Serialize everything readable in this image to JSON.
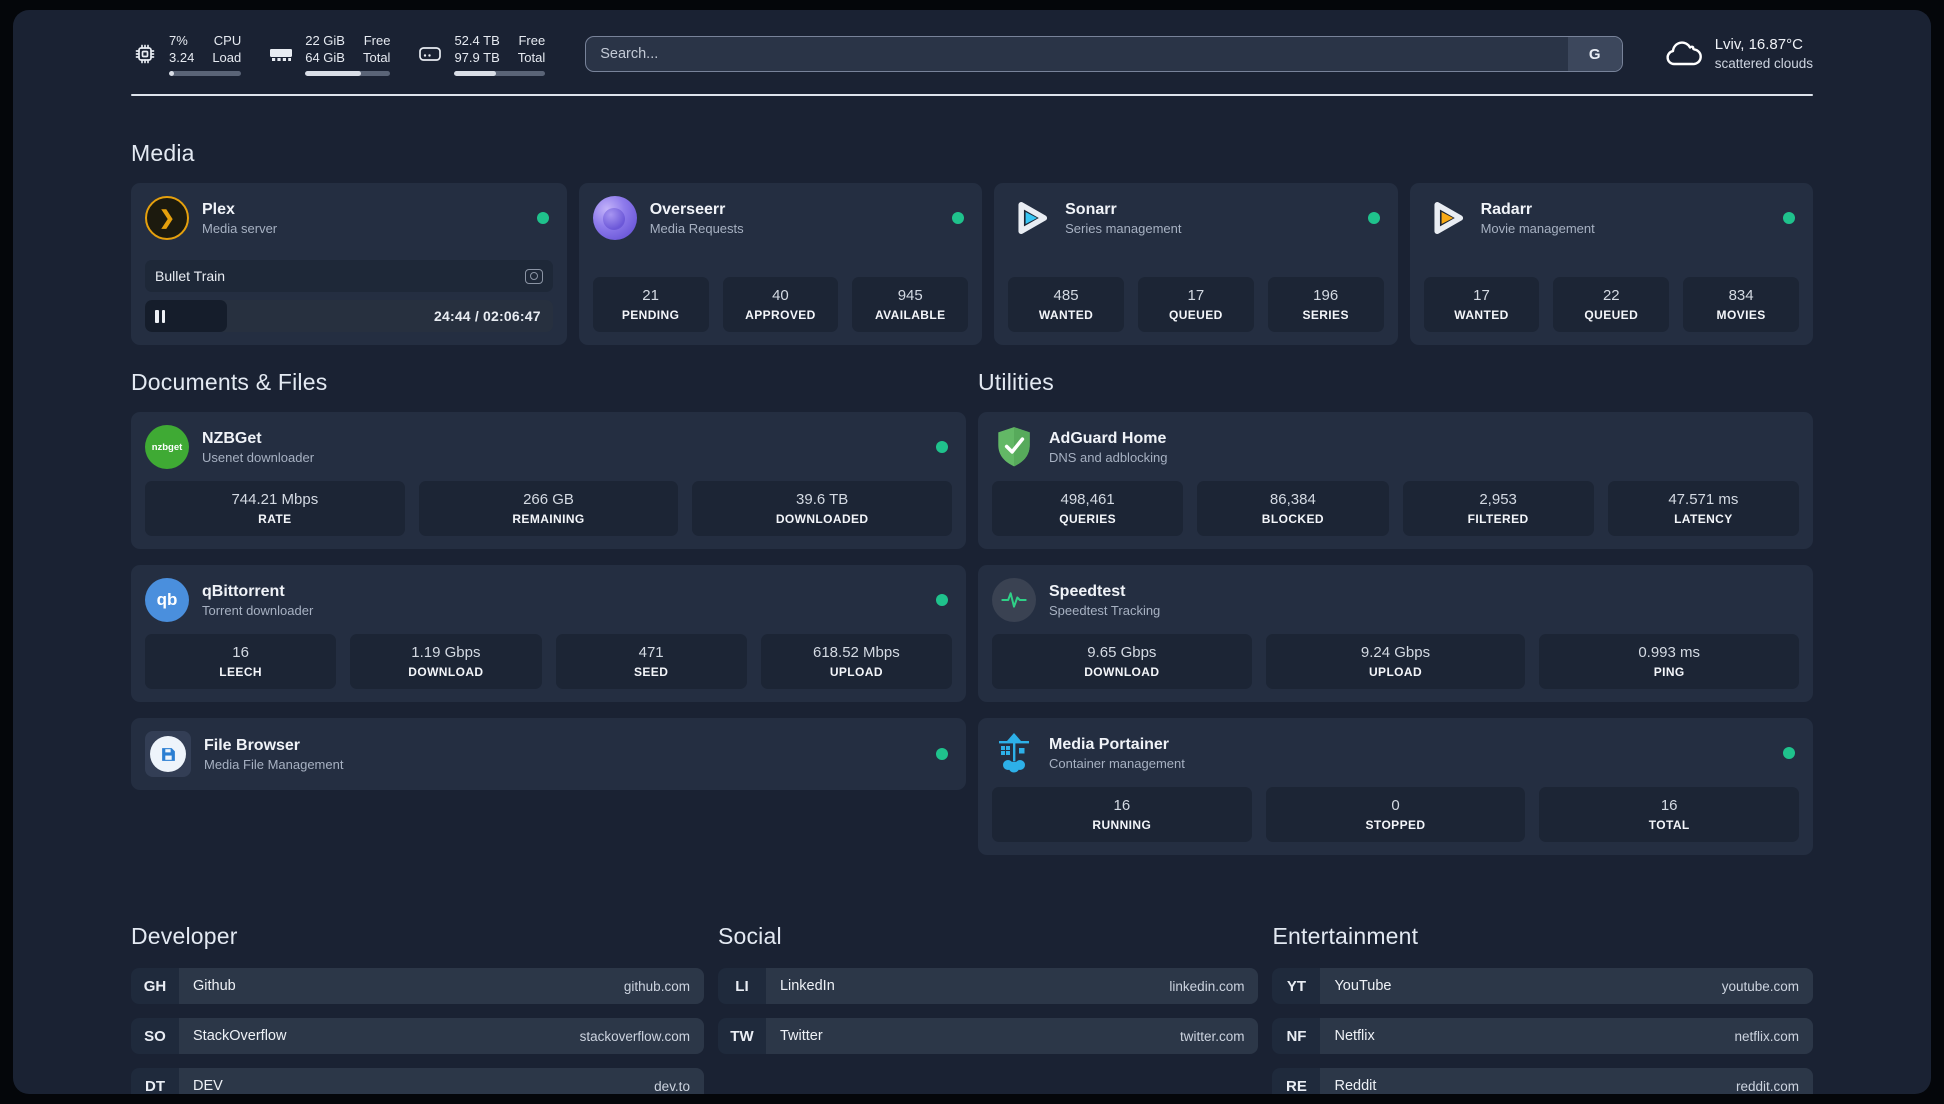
{
  "header": {
    "metrics": [
      {
        "icon": "cpu-chip-icon",
        "values": [
          "7%",
          "3.24"
        ],
        "labels": [
          "CPU",
          "Load"
        ],
        "progress_pct": 7
      },
      {
        "icon": "ram-icon",
        "values": [
          "22 GiB",
          "64 GiB"
        ],
        "labels": [
          "Free",
          "Total"
        ],
        "progress_pct": 66
      },
      {
        "icon": "disk-icon",
        "values": [
          "52.4 TB",
          "97.9 TB"
        ],
        "labels": [
          "Free",
          "Total"
        ],
        "progress_pct": 46
      }
    ],
    "search": {
      "placeholder": "Search...",
      "button_label": "G"
    },
    "weather": {
      "location_temperature": "Lviv, 16.87°C",
      "condition": "scattered clouds"
    }
  },
  "sections": {
    "media": {
      "title": "Media"
    },
    "documents": {
      "title": "Documents & Files"
    },
    "utilities": {
      "title": "Utilities"
    },
    "developer": {
      "title": "Developer"
    },
    "social": {
      "title": "Social"
    },
    "entertainment": {
      "title": "Entertainment"
    }
  },
  "apps": {
    "plex": {
      "title": "Plex",
      "subtitle": "Media server",
      "online": true,
      "now_playing": {
        "title": "Bullet Train",
        "time": "24:44 / 02:06:47",
        "elapsed_pct": 20
      }
    },
    "overseerr": {
      "title": "Overseerr",
      "subtitle": "Media Requests",
      "online": true,
      "stats": [
        {
          "value": "21",
          "label": "PENDING"
        },
        {
          "value": "40",
          "label": "APPROVED"
        },
        {
          "value": "945",
          "label": "AVAILABLE"
        }
      ]
    },
    "sonarr": {
      "title": "Sonarr",
      "subtitle": "Series management",
      "online": true,
      "stats": [
        {
          "value": "485",
          "label": "WANTED"
        },
        {
          "value": "17",
          "label": "QUEUED"
        },
        {
          "value": "196",
          "label": "SERIES"
        }
      ]
    },
    "radarr": {
      "title": "Radarr",
      "subtitle": "Movie management",
      "online": true,
      "stats": [
        {
          "value": "17",
          "label": "WANTED"
        },
        {
          "value": "22",
          "label": "QUEUED"
        },
        {
          "value": "834",
          "label": "MOVIES"
        }
      ]
    },
    "nzbget": {
      "title": "NZBGet",
      "subtitle": "Usenet downloader",
      "online": true,
      "logo_text": "nzbget",
      "stats": [
        {
          "value": "744.21 Mbps",
          "label": "RATE"
        },
        {
          "value": "266 GB",
          "label": "REMAINING"
        },
        {
          "value": "39.6 TB",
          "label": "DOWNLOADED"
        }
      ]
    },
    "qbittorrent": {
      "title": "qBittorrent",
      "subtitle": "Torrent downloader",
      "online": true,
      "logo_text": "qb",
      "stats": [
        {
          "value": "16",
          "label": "LEECH"
        },
        {
          "value": "1.19 Gbps",
          "label": "DOWNLOAD"
        },
        {
          "value": "471",
          "label": "SEED"
        },
        {
          "value": "618.52 Mbps",
          "label": "UPLOAD"
        }
      ]
    },
    "filebrowser": {
      "title": "File Browser",
      "subtitle": "Media File Management",
      "online": true
    },
    "adguard": {
      "title": "AdGuard Home",
      "subtitle": "DNS and adblocking",
      "online": false,
      "stats": [
        {
          "value": "498,461",
          "label": "QUERIES"
        },
        {
          "value": "86,384",
          "label": "BLOCKED"
        },
        {
          "value": "2,953",
          "label": "FILTERED"
        },
        {
          "value": "47.571 ms",
          "label": "LATENCY"
        }
      ]
    },
    "speedtest": {
      "title": "Speedtest",
      "subtitle": "Speedtest Tracking",
      "online": false,
      "stats": [
        {
          "value": "9.65 Gbps",
          "label": "DOWNLOAD"
        },
        {
          "value": "9.24 Gbps",
          "label": "UPLOAD"
        },
        {
          "value": "0.993 ms",
          "label": "PING"
        }
      ]
    },
    "portainer": {
      "title": "Media Portainer",
      "subtitle": "Container management",
      "online": true,
      "stats": [
        {
          "value": "16",
          "label": "RUNNING"
        },
        {
          "value": "0",
          "label": "STOPPED"
        },
        {
          "value": "16",
          "label": "TOTAL"
        }
      ]
    }
  },
  "bookmarks": {
    "developer": [
      {
        "abbr": "GH",
        "name": "Github",
        "url": "github.com"
      },
      {
        "abbr": "SO",
        "name": "StackOverflow",
        "url": "stackoverflow.com"
      },
      {
        "abbr": "DT",
        "name": "DEV",
        "url": "dev.to"
      }
    ],
    "social": [
      {
        "abbr": "LI",
        "name": "LinkedIn",
        "url": "linkedin.com"
      },
      {
        "abbr": "TW",
        "name": "Twitter",
        "url": "twitter.com"
      }
    ],
    "entertainment": [
      {
        "abbr": "YT",
        "name": "YouTube",
        "url": "youtube.com"
      },
      {
        "abbr": "NF",
        "name": "Netflix",
        "url": "netflix.com"
      },
      {
        "abbr": "RE",
        "name": "Reddit",
        "url": "reddit.com"
      }
    ]
  },
  "colors": {
    "status_online": "#1fc28c",
    "divider": "#dde3ec",
    "plex_accent": "#e5a00d"
  }
}
